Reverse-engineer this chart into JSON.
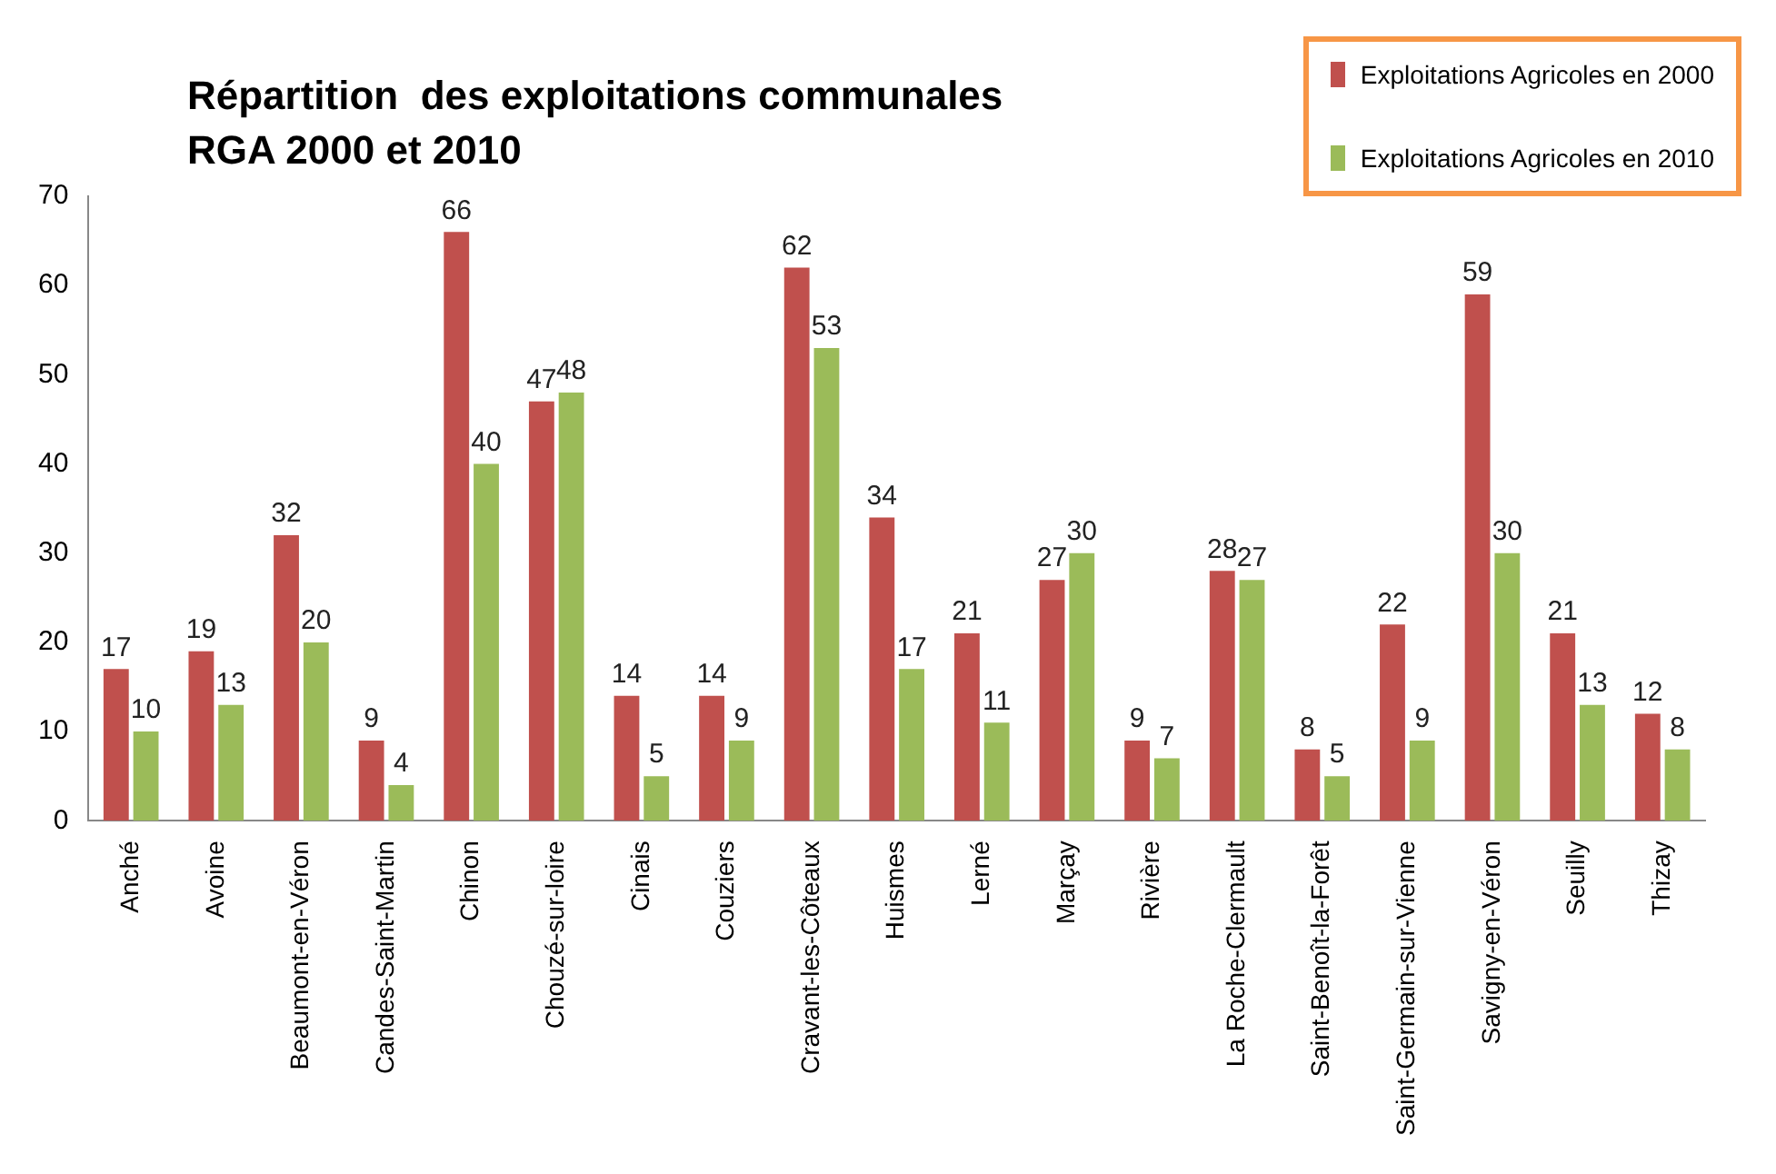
{
  "chart_data": {
    "type": "bar",
    "title": "Répartition  des exploitations communales\nRGA 2000 et 2010",
    "categories": [
      "Anché",
      "Avoine",
      "Beaumont-en-Véron",
      "Candes-Saint-Martin",
      "Chinon",
      "Chouzé-sur-loire",
      "Cinais",
      "Couziers",
      "Cravant-les-Côteaux",
      "Huismes",
      "Lerné",
      "Marçay",
      "Rivière",
      "La Roche-Clermault",
      "Saint-Benoît-la-Forêt",
      "Saint-Germain-sur-Vienne",
      "Savigny-en-Véron",
      "Seuilly",
      "Thizay"
    ],
    "series": [
      {
        "name": "Exploitations Agricoles en 2000",
        "color": "#c0504d",
        "values": [
          17,
          19,
          32,
          9,
          66,
          47,
          14,
          14,
          62,
          34,
          21,
          27,
          9,
          28,
          8,
          22,
          59,
          21,
          12
        ]
      },
      {
        "name": "Exploitations Agricoles en 2010",
        "color": "#9bbb59",
        "values": [
          10,
          13,
          20,
          4,
          40,
          48,
          5,
          9,
          53,
          17,
          11,
          30,
          7,
          27,
          5,
          9,
          30,
          13,
          8
        ]
      }
    ],
    "ylim": [
      0,
      70
    ],
    "yticks": [
      0,
      10,
      20,
      30,
      40,
      50,
      60,
      70
    ],
    "grid": false,
    "legend": "top right",
    "data_labels": true
  }
}
